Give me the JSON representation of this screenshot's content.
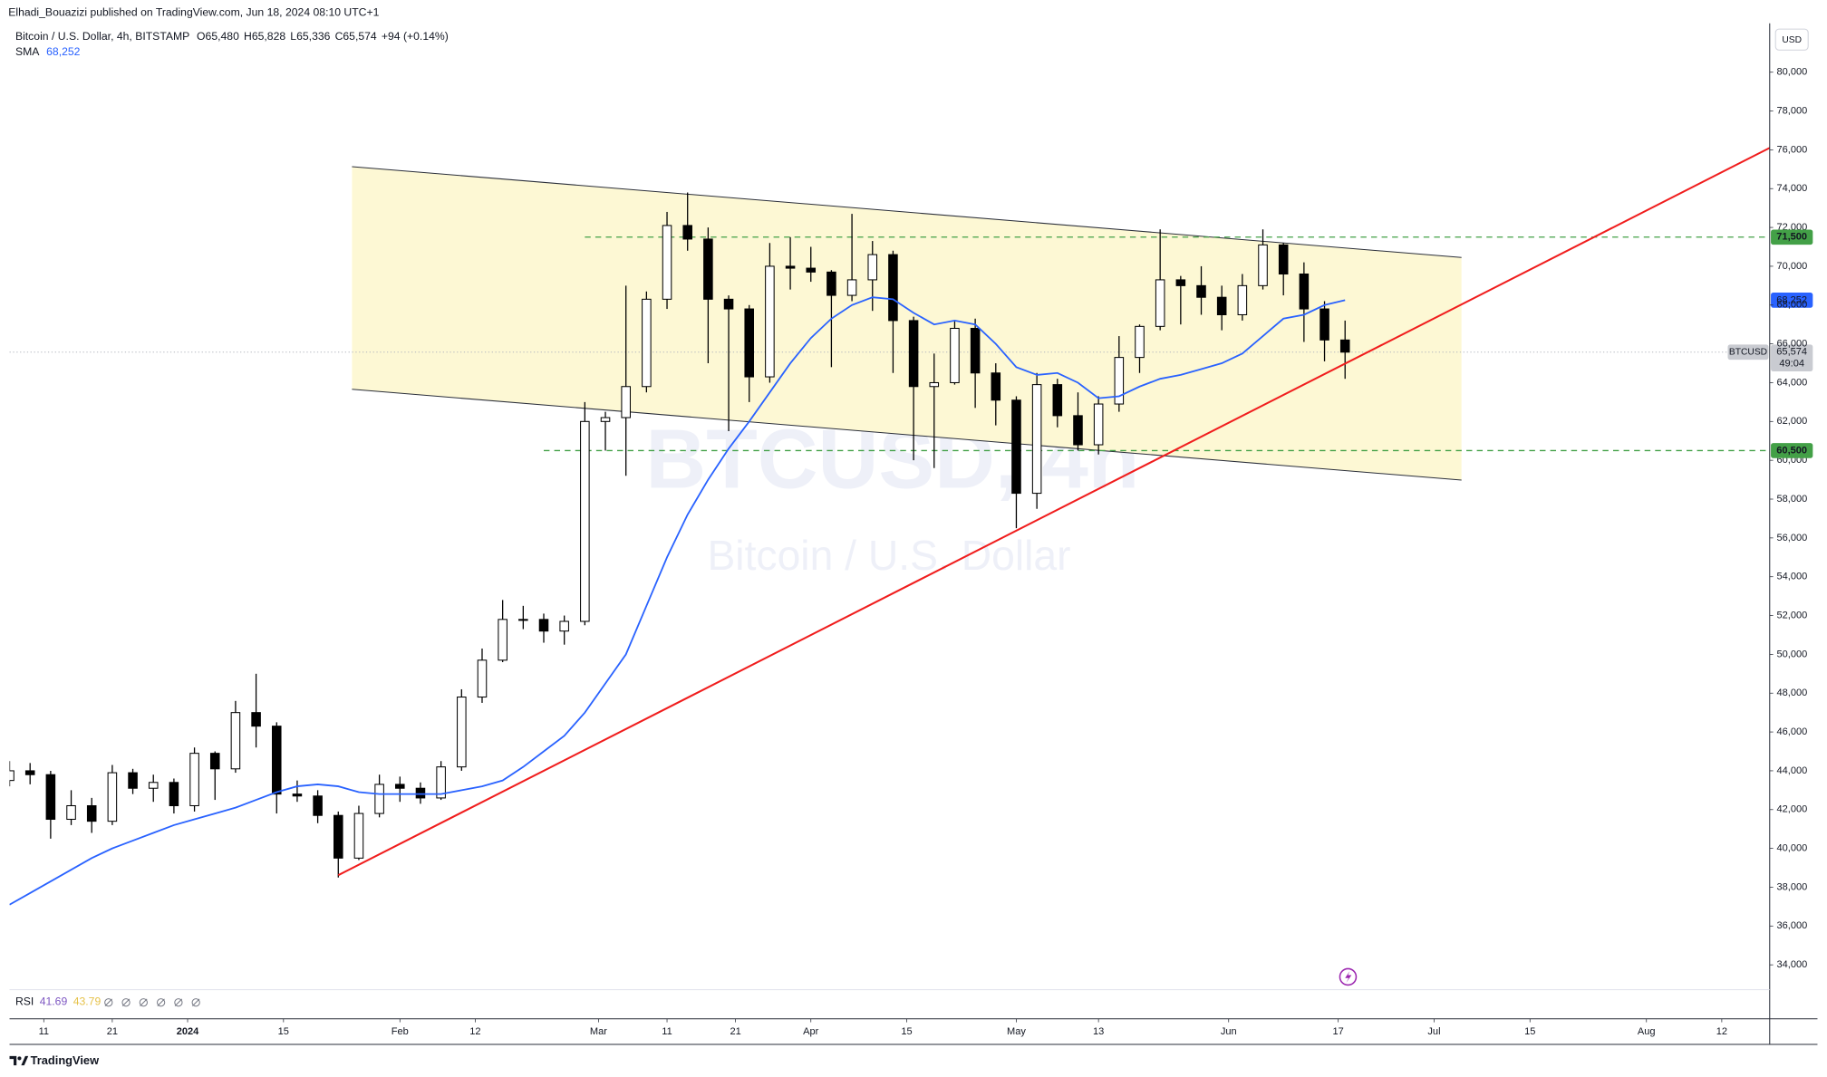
{
  "header": {
    "publisher": "Elhadi_Bouazizi published on TradingView.com, Jun 18, 2024 08:10 UTC+1"
  },
  "chart_data": {
    "type": "candlestick",
    "title": "Bitcoin / U.S. Dollar, 4h, BITSTAMP",
    "ohlc_legend": [
      {
        "label": "O",
        "value": "65,480"
      },
      {
        "label": "H",
        "value": "65,828"
      },
      {
        "label": "L",
        "value": "65,336"
      },
      {
        "label": "C",
        "value": "65,574"
      }
    ],
    "change": "+94 (+0.14%)",
    "watermark": [
      "BTCUSD, 4h",
      "Bitcoin / U.S. Dollar"
    ],
    "x": [
      "2023-12-06",
      "2023-12-09",
      "2023-12-12",
      "2023-12-15",
      "2023-12-18",
      "2023-12-21",
      "2023-12-24",
      "2023-12-27",
      "2023-12-30",
      "2024-01-02",
      "2024-01-05",
      "2024-01-08",
      "2024-01-11",
      "2024-01-14",
      "2024-01-17",
      "2024-01-20",
      "2024-01-23",
      "2024-01-26",
      "2024-01-29",
      "2024-02-01",
      "2024-02-04",
      "2024-02-07",
      "2024-02-10",
      "2024-02-13",
      "2024-02-16",
      "2024-02-19",
      "2024-02-22",
      "2024-02-25",
      "2024-02-28",
      "2024-03-02",
      "2024-03-05",
      "2024-03-08",
      "2024-03-11",
      "2024-03-14",
      "2024-03-17",
      "2024-03-20",
      "2024-03-23",
      "2024-03-26",
      "2024-03-29",
      "2024-04-01",
      "2024-04-04",
      "2024-04-07",
      "2024-04-10",
      "2024-04-13",
      "2024-04-16",
      "2024-04-19",
      "2024-04-22",
      "2024-04-25",
      "2024-04-28",
      "2024-05-01",
      "2024-05-04",
      "2024-05-07",
      "2024-05-10",
      "2024-05-13",
      "2024-05-16",
      "2024-05-19",
      "2024-05-22",
      "2024-05-25",
      "2024-05-28",
      "2024-05-31",
      "2024-06-03",
      "2024-06-06",
      "2024-06-09",
      "2024-06-12",
      "2024-06-15",
      "2024-06-18"
    ],
    "ohlc": [
      [
        43500,
        44500,
        43200,
        44000
      ],
      [
        44000,
        44400,
        43300,
        43800
      ],
      [
        43800,
        44000,
        40500,
        41500
      ],
      [
        41500,
        43000,
        41200,
        42200
      ],
      [
        42200,
        42600,
        40800,
        41400
      ],
      [
        41400,
        44300,
        41200,
        43900
      ],
      [
        43900,
        44100,
        42800,
        43100
      ],
      [
        43100,
        43800,
        42400,
        43400
      ],
      [
        43400,
        43600,
        41800,
        42200
      ],
      [
        42200,
        45200,
        41900,
        44900
      ],
      [
        44900,
        45000,
        42500,
        44100
      ],
      [
        44100,
        47600,
        43900,
        47000
      ],
      [
        47000,
        49000,
        45200,
        46300
      ],
      [
        46300,
        46500,
        41800,
        42800
      ],
      [
        42800,
        43500,
        42400,
        42700
      ],
      [
        42700,
        43000,
        41300,
        41700
      ],
      [
        41700,
        41900,
        38500,
        39500
      ],
      [
        39500,
        42200,
        39400,
        41800
      ],
      [
        41800,
        43800,
        41600,
        43300
      ],
      [
        43300,
        43700,
        42400,
        43100
      ],
      [
        43100,
        43400,
        42300,
        42600
      ],
      [
        42600,
        44500,
        42500,
        44200
      ],
      [
        44200,
        48200,
        44000,
        47800
      ],
      [
        47800,
        50300,
        47500,
        49700
      ],
      [
        49700,
        52800,
        49600,
        51800
      ],
      [
        51800,
        52500,
        51300,
        51800
      ],
      [
        51800,
        52100,
        50600,
        51200
      ],
      [
        51200,
        52000,
        50500,
        51700
      ],
      [
        51700,
        63000,
        51500,
        62000
      ],
      [
        62000,
        62500,
        60500,
        62200
      ],
      [
        62200,
        69000,
        59200,
        63800
      ],
      [
        63800,
        68700,
        63500,
        68300
      ],
      [
        68300,
        72800,
        67800,
        72100
      ],
      [
        72100,
        73800,
        70800,
        71400
      ],
      [
        71400,
        72000,
        65000,
        68300
      ],
      [
        68300,
        68500,
        61500,
        67800
      ],
      [
        67800,
        68000,
        63000,
        64300
      ],
      [
        64300,
        71200,
        64000,
        70000
      ],
      [
        70000,
        71500,
        68800,
        69900
      ],
      [
        69900,
        71000,
        69200,
        69700
      ],
      [
        69700,
        69800,
        64800,
        68500
      ],
      [
        68500,
        72700,
        68200,
        69300
      ],
      [
        69300,
        71300,
        67700,
        70600
      ],
      [
        70600,
        70800,
        64500,
        67200
      ],
      [
        67200,
        67400,
        60000,
        63800
      ],
      [
        63800,
        65500,
        59600,
        64000
      ],
      [
        64000,
        67200,
        63900,
        66800
      ],
      [
        66800,
        67300,
        62700,
        64500
      ],
      [
        64500,
        65000,
        61800,
        63100
      ],
      [
        63100,
        63300,
        56500,
        58300
      ],
      [
        58300,
        64500,
        57500,
        63900
      ],
      [
        63900,
        64200,
        61700,
        62300
      ],
      [
        62300,
        63500,
        60500,
        60800
      ],
      [
        60800,
        63300,
        60300,
        62900
      ],
      [
        62900,
        66400,
        62500,
        65300
      ],
      [
        65300,
        67000,
        64500,
        66900
      ],
      [
        66900,
        71900,
        66700,
        69300
      ],
      [
        69300,
        69500,
        67000,
        69000
      ],
      [
        69000,
        70000,
        67500,
        68400
      ],
      [
        68400,
        69000,
        66700,
        67500
      ],
      [
        67500,
        69600,
        67200,
        69000
      ],
      [
        69000,
        71900,
        68800,
        71100
      ],
      [
        71100,
        71200,
        68500,
        69600
      ],
      [
        69600,
        70200,
        66100,
        67800
      ],
      [
        67800,
        68200,
        65100,
        66200
      ],
      [
        66200,
        67200,
        64200,
        65574
      ]
    ],
    "up_color": "#ffffff",
    "down_color": "#000000",
    "wick_color": "#000000",
    "sma": {
      "name": "SMA",
      "color": "#2962ff",
      "value_label": "68,252",
      "values": [
        37100,
        37700,
        38300,
        38900,
        39500,
        40000,
        40400,
        40800,
        41200,
        41500,
        41800,
        42100,
        42500,
        42900,
        43200,
        43300,
        43200,
        42900,
        42800,
        42800,
        42800,
        42800,
        43000,
        43200,
        43500,
        44200,
        45000,
        45800,
        47000,
        48500,
        50000,
        52500,
        55000,
        57200,
        59000,
        60600,
        62000,
        63500,
        65000,
        66300,
        67300,
        68000,
        68400,
        68300,
        67600,
        67000,
        67200,
        67000,
        66000,
        64800,
        64400,
        64500,
        64000,
        63200,
        63300,
        63800,
        64200,
        64400,
        64700,
        65000,
        65500,
        66400,
        67300,
        67500,
        68000,
        68252
      ]
    },
    "last_price": {
      "value": 65574,
      "label": "65,574",
      "symbol": "BTCUSD",
      "countdown": "49:04",
      "color": "#c9cbd1"
    },
    "drawings": {
      "channel": {
        "color": "#fdf8d4",
        "line_color": "#2a2e39",
        "top": {
          "x": [
            "2024-01-25",
            "2024-07-05"
          ],
          "y": [
            75130,
            70450
          ]
        },
        "bottom": {
          "x": [
            "2024-01-25",
            "2024-07-05"
          ],
          "y": [
            63660,
            58980
          ]
        }
      },
      "trendline": {
        "color": "#f01d1d",
        "x": [
          "2024-01-23",
          "2024-08-19"
        ],
        "y": [
          38620,
          76100
        ]
      },
      "hlines": [
        {
          "value": 71500,
          "label": "71,500",
          "from": "2024-02-28",
          "color": "#43a047"
        },
        {
          "value": 60500,
          "label": "60,500",
          "from": "2024-02-22",
          "color": "#43a047"
        }
      ]
    },
    "xlim": [
      "2023-12-06",
      "2024-08-19"
    ],
    "xticks": [
      {
        "value": "2023-12-11",
        "label": "11"
      },
      {
        "value": "2023-12-21",
        "label": "21"
      },
      {
        "value": "2024-01-01",
        "label": "2024"
      },
      {
        "value": "2024-01-15",
        "label": "15"
      },
      {
        "value": "2024-02-01",
        "label": "Feb"
      },
      {
        "value": "2024-02-12",
        "label": "12"
      },
      {
        "value": "2024-03-01",
        "label": "Mar"
      },
      {
        "value": "2024-03-11",
        "label": "11"
      },
      {
        "value": "2024-03-21",
        "label": "21"
      },
      {
        "value": "2024-04-01",
        "label": "Apr"
      },
      {
        "value": "2024-04-15",
        "label": "15"
      },
      {
        "value": "2024-05-01",
        "label": "May"
      },
      {
        "value": "2024-05-13",
        "label": "13"
      },
      {
        "value": "2024-06-01",
        "label": "Jun"
      },
      {
        "value": "2024-06-17",
        "label": "17"
      },
      {
        "value": "2024-07-01",
        "label": "Jul"
      },
      {
        "value": "2024-07-15",
        "label": "15"
      },
      {
        "value": "2024-08-01",
        "label": "Aug"
      },
      {
        "value": "2024-08-12",
        "label": "12"
      }
    ],
    "ylim": [
      32720,
      82520
    ],
    "yticks": [
      {
        "value": 80000,
        "label": "80,000"
      },
      {
        "value": 78000,
        "label": "78,000"
      },
      {
        "value": 76000,
        "label": "76,000"
      },
      {
        "value": 74000,
        "label": "74,000"
      },
      {
        "value": 72000,
        "label": "72,000"
      },
      {
        "value": 70000,
        "label": "70,000"
      },
      {
        "value": 68000,
        "label": "68,000"
      },
      {
        "value": 66000,
        "label": "66,000"
      },
      {
        "value": 64000,
        "label": "64,000"
      },
      {
        "value": 62000,
        "label": "62,000"
      },
      {
        "value": 60000,
        "label": "60,000"
      },
      {
        "value": 58000,
        "label": "58,000"
      },
      {
        "value": 56000,
        "label": "56,000"
      },
      {
        "value": 54000,
        "label": "54,000"
      },
      {
        "value": 52000,
        "label": "52,000"
      },
      {
        "value": 50000,
        "label": "50,000"
      },
      {
        "value": 48000,
        "label": "48,000"
      },
      {
        "value": 46000,
        "label": "46,000"
      },
      {
        "value": 44000,
        "label": "44,000"
      },
      {
        "value": 42000,
        "label": "42,000"
      },
      {
        "value": 40000,
        "label": "40,000"
      },
      {
        "value": 38000,
        "label": "38,000"
      },
      {
        "value": 36000,
        "label": "36,000"
      },
      {
        "value": 34000,
        "label": "34,000"
      }
    ],
    "currency": "USD",
    "rsi": {
      "name": "RSI",
      "values": [
        41.69,
        43.79
      ],
      "colors": [
        "#7e57c2",
        "#e6c24a"
      ]
    }
  },
  "footer": {
    "brand": "TradingView"
  }
}
